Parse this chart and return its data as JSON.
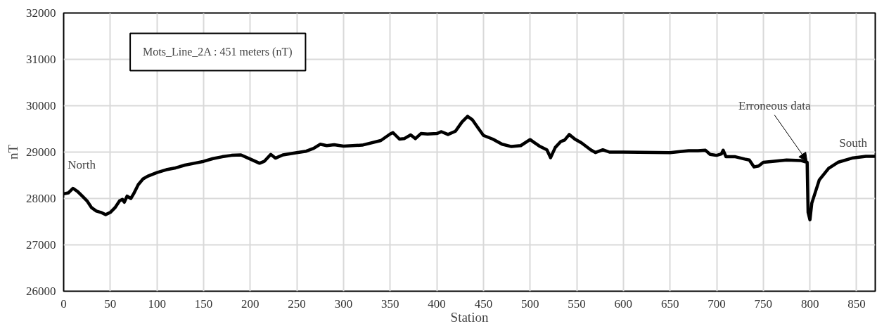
{
  "chart_data": {
    "type": "line",
    "title": "Mots_Line_2A : 451 meters (nT)",
    "xlabel": "Station",
    "ylabel": "nT",
    "xlim": [
      0,
      870
    ],
    "xticks": [
      0,
      50,
      100,
      150,
      200,
      250,
      300,
      350,
      400,
      450,
      500,
      550,
      600,
      650,
      700,
      750,
      800,
      850
    ],
    "ylim": [
      26000,
      32000
    ],
    "yticks": [
      26000,
      27000,
      28000,
      29000,
      30000,
      31000,
      32000
    ],
    "grid": true,
    "marker": "none",
    "line_style": "solid",
    "annotations": [
      "North",
      {
        "text": "Erroneous data",
        "x": 797,
        "y": 28800
      },
      "South"
    ],
    "series": [
      {
        "color": "#000000",
        "x": [
          0,
          5,
          10,
          15,
          20,
          25,
          30,
          35,
          40,
          45,
          50,
          55,
          60,
          63,
          65,
          68,
          72,
          75,
          80,
          85,
          90,
          100,
          110,
          120,
          130,
          140,
          150,
          160,
          170,
          180,
          190,
          200,
          210,
          215,
          222,
          227,
          235,
          250,
          260,
          268,
          275,
          282,
          290,
          300,
          320,
          340,
          350,
          353,
          360,
          365,
          372,
          377,
          383,
          390,
          400,
          405,
          412,
          420,
          427,
          433,
          438,
          445,
          450,
          460,
          470,
          480,
          490,
          500,
          505,
          510,
          518,
          522,
          527,
          533,
          537,
          542,
          548,
          555,
          565,
          570,
          578,
          585,
          600,
          650,
          670,
          680,
          688,
          693,
          700,
          705,
          707,
          710,
          720,
          730,
          735,
          740,
          745,
          750,
          760,
          775,
          790,
          797,
          798,
          800,
          802,
          810,
          820,
          830,
          845,
          860,
          870
        ],
        "values": [
          28100,
          28120,
          28220,
          28150,
          28050,
          27950,
          27800,
          27730,
          27700,
          27650,
          27700,
          27800,
          27950,
          27980,
          27920,
          28050,
          28000,
          28100,
          28300,
          28420,
          28480,
          28560,
          28620,
          28660,
          28720,
          28760,
          28800,
          28860,
          28900,
          28930,
          28940,
          28850,
          28760,
          28800,
          28950,
          28870,
          28940,
          28990,
          29020,
          29080,
          29170,
          29140,
          29160,
          29130,
          29150,
          29250,
          29390,
          29420,
          29280,
          29290,
          29370,
          29290,
          29400,
          29390,
          29400,
          29440,
          29380,
          29450,
          29650,
          29770,
          29700,
          29500,
          29360,
          29280,
          29170,
          29120,
          29140,
          29270,
          29200,
          29130,
          29050,
          28880,
          29100,
          29230,
          29260,
          29380,
          29280,
          29200,
          29050,
          28990,
          29050,
          29000,
          29000,
          28990,
          29030,
          29030,
          29040,
          28950,
          28930,
          28960,
          29040,
          28900,
          28900,
          28850,
          28830,
          28680,
          28700,
          28780,
          28800,
          28830,
          28820,
          28780,
          27700,
          27540,
          27900,
          28400,
          28650,
          28780,
          28870,
          28910,
          28910
        ]
      }
    ]
  }
}
